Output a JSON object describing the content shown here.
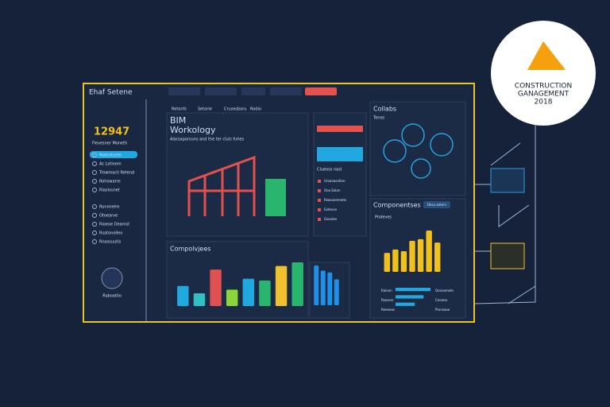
{
  "app": {
    "title": "Ehaf Setene",
    "kpi": "12947",
    "kpi_caption": "Fievesner Moneth",
    "nav": [
      "Roenstures",
      "Ac Lotioom",
      "Trowmacli Retend",
      "Rohewarre",
      "Rlasiosnet",
      "Runonelre",
      "Otoearve",
      "Rioeoe Deamst",
      "Rsatonolleo",
      "Rnassuutis"
    ],
    "user": "Raboatlio"
  },
  "tabs": [
    "Retonfs",
    "Setorie",
    "Crusesbaru",
    "Rodio"
  ],
  "hero": {
    "title": "BIM",
    "subtitle": "Workology",
    "caption": "Alarsaporsuns and the ter cluis fuhes"
  },
  "badge": {
    "line1": "CONSTRUCTION",
    "line2": "GANAGEMENT",
    "line3": "2018"
  },
  "side_panel": {
    "title": "Clueoss nasi",
    "items": [
      "Uroaoasotion",
      "Ooo Eolan",
      "Rowaoemeets",
      "Eoteoce",
      "Gasotes"
    ]
  },
  "collabs": {
    "title": "Collabs",
    "caption": "Tenes"
  },
  "components": {
    "title": "Componentses",
    "subtitle": "Proleves",
    "button": "Desu eoters",
    "rows": [
      "Ralvon",
      "Reaerer",
      "Reeeeas"
    ],
    "row_values": [
      "Oanoomets",
      "Ceoeee",
      "Pronsaoe"
    ]
  },
  "charts": [
    {
      "type": "bar",
      "title": "Compolvjees",
      "values": [
        22,
        14,
        40,
        18,
        30,
        28,
        44,
        48
      ],
      "colors": [
        "#1fa9e0",
        "#2fc1c6",
        "#e05252",
        "#8bd43a",
        "#1fa9e0",
        "#2ab56e",
        "#f0c02e",
        "#2ab56e"
      ]
    },
    {
      "type": "bar",
      "values": [
        46,
        40,
        38,
        30
      ],
      "colors": [
        "#1f8fe8",
        "#1f8fe8",
        "#1f8fe8",
        "#1f8fe8"
      ]
    },
    {
      "type": "bar",
      "values": [
        22,
        26,
        24,
        36,
        38,
        48,
        34
      ],
      "colors": [
        "#f2c01e",
        "#f2c01e",
        "#f2c01e",
        "#f2c01e",
        "#f2c01e",
        "#f2c01e",
        "#f2c01e"
      ]
    },
    {
      "type": "hbar",
      "values": [
        40,
        32,
        22
      ],
      "colors": [
        "#1fa9e0",
        "#1fa9e0",
        "#1fa9e0"
      ]
    }
  ]
}
